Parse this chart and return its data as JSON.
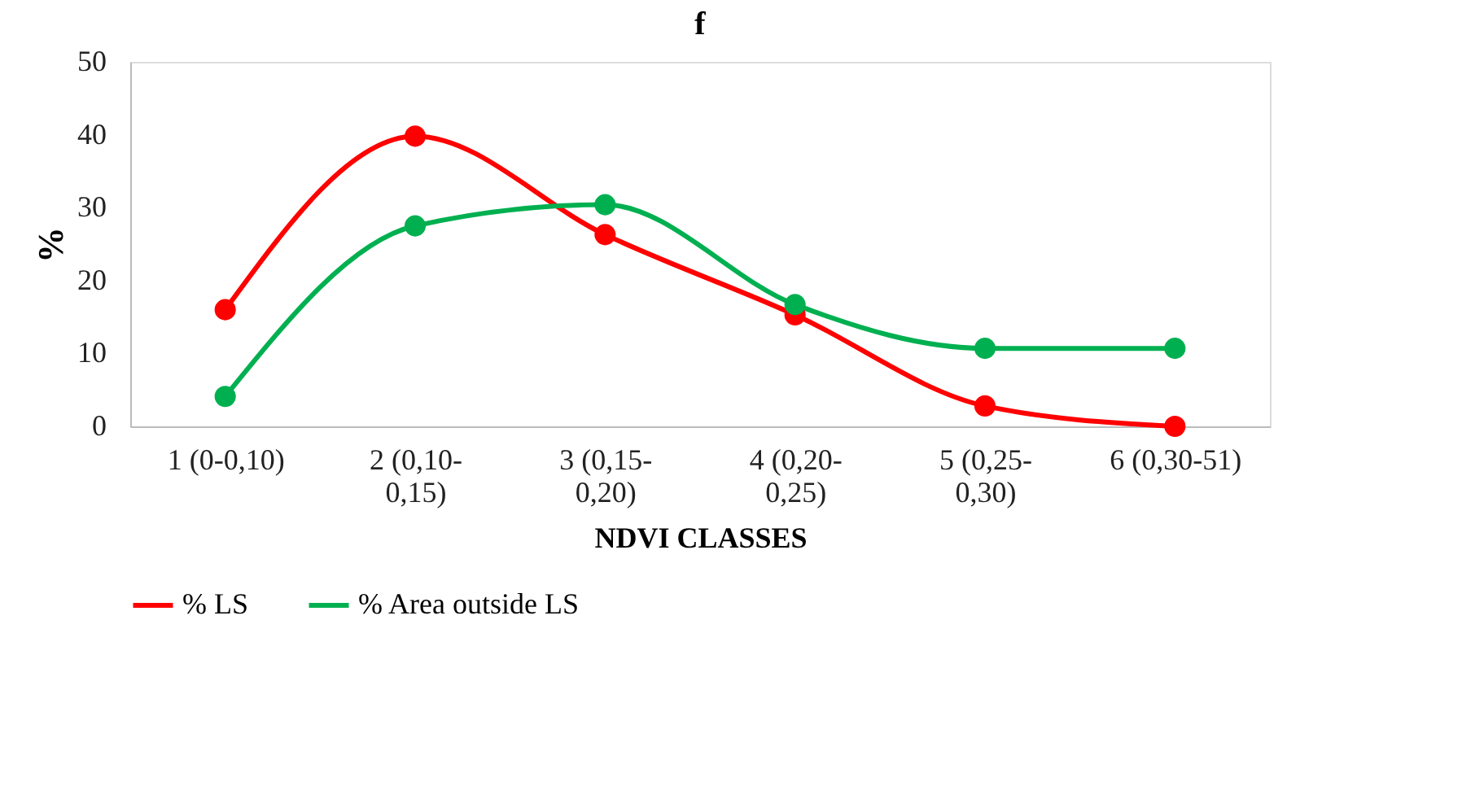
{
  "chart_data": {
    "type": "line",
    "title": "f",
    "xlabel": "NDVI  CLASSES",
    "ylabel": "%",
    "categories": [
      "1 (0-0,10)",
      "2 (0,10-\n0,15)",
      "3 (0,15-\n0,20)",
      "4 (0,20-\n0,25)",
      "5 (0,25-\n0,30)",
      "6 (0,30-51)"
    ],
    "series": [
      {
        "name": "% LS",
        "color": "#ff0000",
        "values": [
          16.0,
          39.8,
          26.3,
          15.3,
          2.8,
          0
        ]
      },
      {
        "name": "% Area outside LS",
        "color": "#00b050",
        "values": [
          4.1,
          27.5,
          30.4,
          16.7,
          10.7,
          10.7
        ]
      }
    ],
    "ylim": [
      0,
      50
    ],
    "yticks": [
      0,
      10,
      20,
      30,
      40,
      50
    ],
    "grid": false,
    "legend": "bottom",
    "marker": "circle",
    "line_style": "solid"
  }
}
